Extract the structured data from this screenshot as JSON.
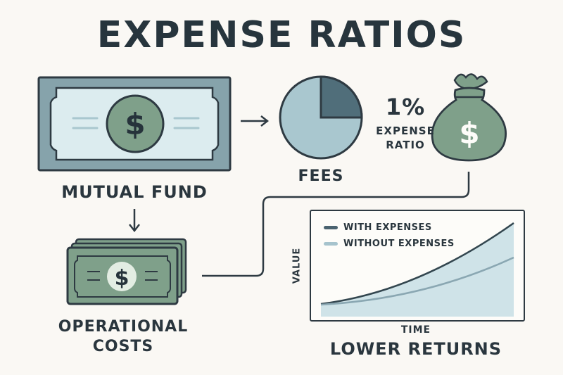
{
  "title": "EXPENSE RATIOS",
  "mutual_fund_label": "MUTUAL FUND",
  "fees_label": "FEES",
  "ratio": {
    "percent": "1%",
    "line1": "EXPENSE",
    "line2": "RATIO"
  },
  "operational_costs": {
    "line1": "OPERATIONAL",
    "line2": "COSTS"
  },
  "dollar_symbol": "$",
  "pie": {
    "fee_fraction": 0.25
  },
  "chart": {
    "legend": [
      {
        "label": "WITH EXPENSES",
        "color": "#4a6370"
      },
      {
        "label": "WITHOUT EXPENSES",
        "color": "#a6c3cd"
      }
    ],
    "ylabel": "VALUE",
    "xlabel": "TIME",
    "caption": "LOWER RETURNS"
  },
  "colors": {
    "dark": "#2e3a42",
    "green": "#7fa08a",
    "slate": "#8aa7af",
    "pale_blue": "#dcecef",
    "light_blue": "#a9c7cf",
    "pie_dark": "#506e7a"
  }
}
